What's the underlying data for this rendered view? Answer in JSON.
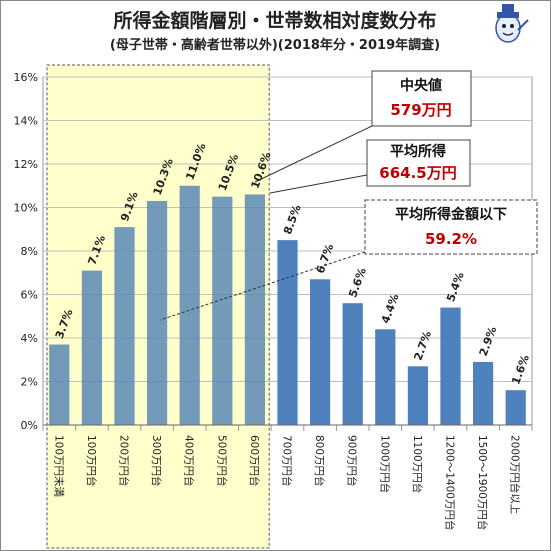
{
  "chart_data": {
    "type": "bar",
    "title": "所得金額階層別・世帯数相対度数分布",
    "subtitle": "(母子世帯・高齢者世帯以外)(2018年分・2019年調査)",
    "categories": [
      "100万円未満",
      "100万円台",
      "200万円台",
      "300万円台",
      "400万円台",
      "500万円台",
      "600万円台",
      "700万円台",
      "800万円台",
      "900万円台",
      "1000万円台",
      "1100万円台",
      "1200〜1400万円台",
      "1500〜1900万円台",
      "2000万円台以上"
    ],
    "values": [
      3.7,
      7.1,
      9.1,
      10.3,
      11.0,
      10.5,
      10.6,
      8.5,
      6.7,
      5.6,
      4.4,
      2.7,
      5.4,
      2.9,
      1.6
    ],
    "data_labels": [
      "3.7%",
      "7.1%",
      "9.1%",
      "10.3%",
      "11.0%",
      "10.5%",
      "10.6%",
      "8.5%",
      "6.7%",
      "5.6%",
      "4.4%",
      "2.7%",
      "5.4%",
      "2.9%",
      "1.6%"
    ],
    "ylim": [
      0,
      16
    ],
    "yticks": [
      0,
      2,
      4,
      6,
      8,
      10,
      12,
      14,
      16
    ],
    "ytick_labels": [
      "0%",
      "2%",
      "4%",
      "6%",
      "8%",
      "10%",
      "12%",
      "14%",
      "16%"
    ],
    "grid": true,
    "colors": {
      "bar": "#4f81bd",
      "highlight": "#ffffcc",
      "accent": "#c00000"
    },
    "highlight_categories": [
      "100万円未満",
      "100万円台",
      "200万円台",
      "300万円台",
      "400万円台",
      "500万円台",
      "600万円台"
    ],
    "annotations": [
      {
        "title": "中央値",
        "value": "579万円"
      },
      {
        "title": "平均所得",
        "value": "664.5万円"
      },
      {
        "title": "平均所得金額以下",
        "value": "59.2%"
      }
    ]
  }
}
